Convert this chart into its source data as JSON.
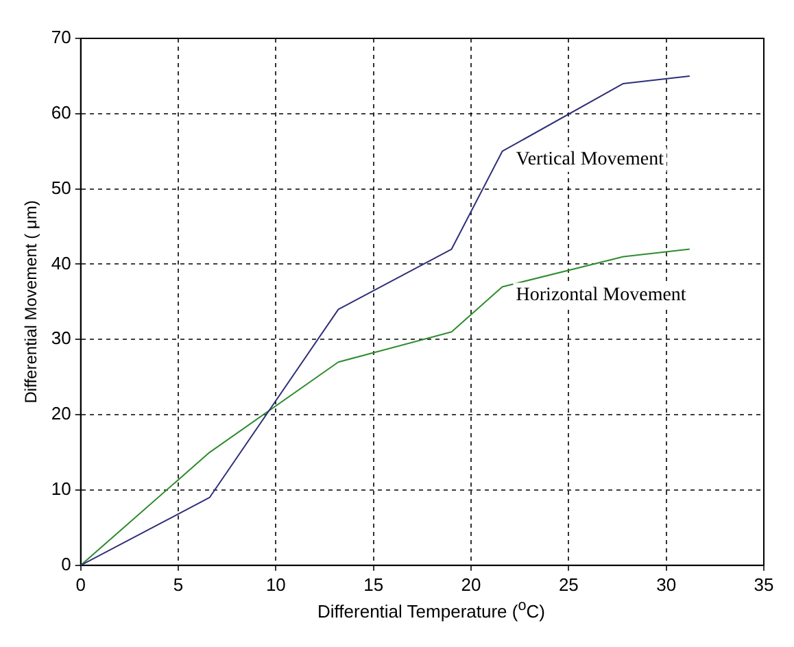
{
  "chart_data": {
    "type": "line",
    "xlabel": "Differential Temperature ($^{o}$C)",
    "ylabel": "Differential Movement ( μm)",
    "xlim": [
      0,
      35
    ],
    "xticks": [
      0,
      5,
      10,
      15,
      20,
      25,
      30,
      35
    ],
    "ylim": [
      0,
      70
    ],
    "yticks": [
      0,
      10,
      20,
      30,
      40,
      50,
      60,
      70
    ],
    "grid": true,
    "legend": false,
    "marker": "none",
    "line_style": "solid",
    "series": [
      {
        "name": "Vertical Movement",
        "color": "#2e2e7a",
        "x": [
          0,
          6.6,
          13.2,
          19,
          21.6,
          27.8,
          31.2
        ],
        "values": [
          0,
          9,
          34,
          42,
          55,
          64,
          65
        ]
      },
      {
        "name": "Horizontal Movement",
        "color": "#2e8b2e",
        "x": [
          0,
          6.6,
          13.2,
          19,
          21.6,
          27.8,
          31.2
        ],
        "values": [
          0,
          15,
          27,
          31,
          37,
          41,
          42
        ]
      }
    ]
  }
}
